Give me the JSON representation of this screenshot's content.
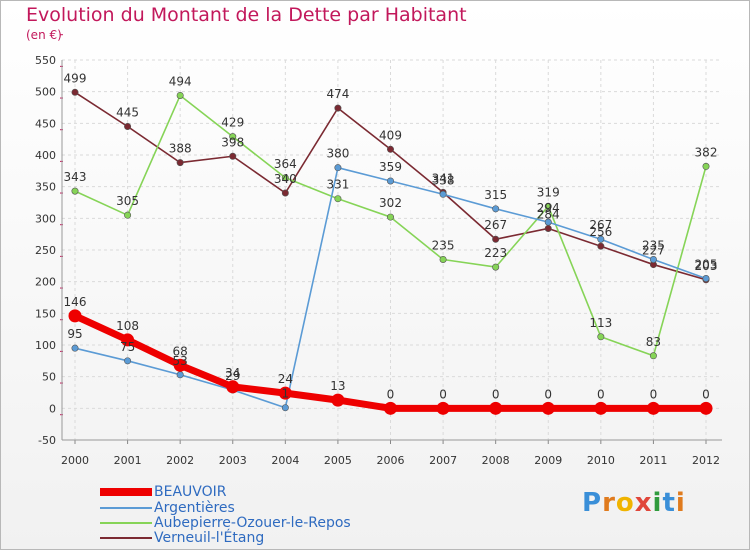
{
  "chart_data": {
    "type": "line",
    "title": "Evolution du Montant de la Dette par Habitant",
    "subtitle": "(en €)",
    "xlabel": "",
    "ylabel": "",
    "ylim": [
      -50,
      550
    ],
    "yticks": [
      -50,
      0,
      50,
      100,
      150,
      200,
      250,
      300,
      350,
      400,
      450,
      500,
      550
    ],
    "categories": [
      "2000",
      "2001",
      "2002",
      "2003",
      "2004",
      "2005",
      "2006",
      "2007",
      "2008",
      "2009",
      "2010",
      "2011",
      "2012"
    ],
    "grid": true,
    "legend_position": "bottom-left",
    "series": [
      {
        "name": "BEAUVOIR",
        "color": "#ee0000",
        "values": [
          146,
          108,
          68,
          34,
          24,
          13,
          0,
          0,
          0,
          0,
          0,
          0,
          0
        ],
        "labels": [
          "146",
          "108",
          "68",
          "34",
          "24",
          "13",
          "0",
          "0",
          "0",
          "0",
          "0",
          "0",
          "0"
        ]
      },
      {
        "name": "Argentières",
        "color": "#5b9bd5",
        "values": [
          95,
          75,
          53,
          29,
          1,
          380,
          359,
          338,
          315,
          294,
          267,
          235,
          205
        ],
        "labels": [
          "95",
          "75",
          "53",
          "29",
          "1",
          "380",
          "359",
          "338",
          "315",
          "294",
          "267",
          "235",
          "205"
        ]
      },
      {
        "name": "Aubepierre-Ozouer-le-Repos",
        "color": "#86d457",
        "values": [
          343,
          305,
          494,
          429,
          364,
          331,
          302,
          235,
          223,
          319,
          113,
          83,
          382
        ],
        "labels": [
          "343",
          "305",
          "494",
          "429",
          "364",
          "331",
          "302",
          "235",
          "223",
          "319",
          "113",
          "83",
          "382"
        ]
      },
      {
        "name": "Verneuil-l'Étang",
        "color": "#7b2a32",
        "values": [
          499,
          445,
          388,
          398,
          340,
          474,
          409,
          341,
          267,
          284,
          256,
          227,
          203
        ],
        "labels": [
          "499",
          "445",
          "388",
          "398",
          "340",
          "474",
          "409",
          "341",
          "267",
          "284",
          "256",
          "227",
          "203"
        ]
      }
    ]
  },
  "logo": {
    "text": "Proxiti",
    "letters": [
      "P",
      "r",
      "o",
      "x",
      "i",
      "t",
      "i"
    ],
    "colors": [
      "#3a8fd8",
      "#e07b1e",
      "#f0b400",
      "#e0463a",
      "#2f9b3d",
      "#3a8fd8",
      "#e07b1e"
    ]
  }
}
